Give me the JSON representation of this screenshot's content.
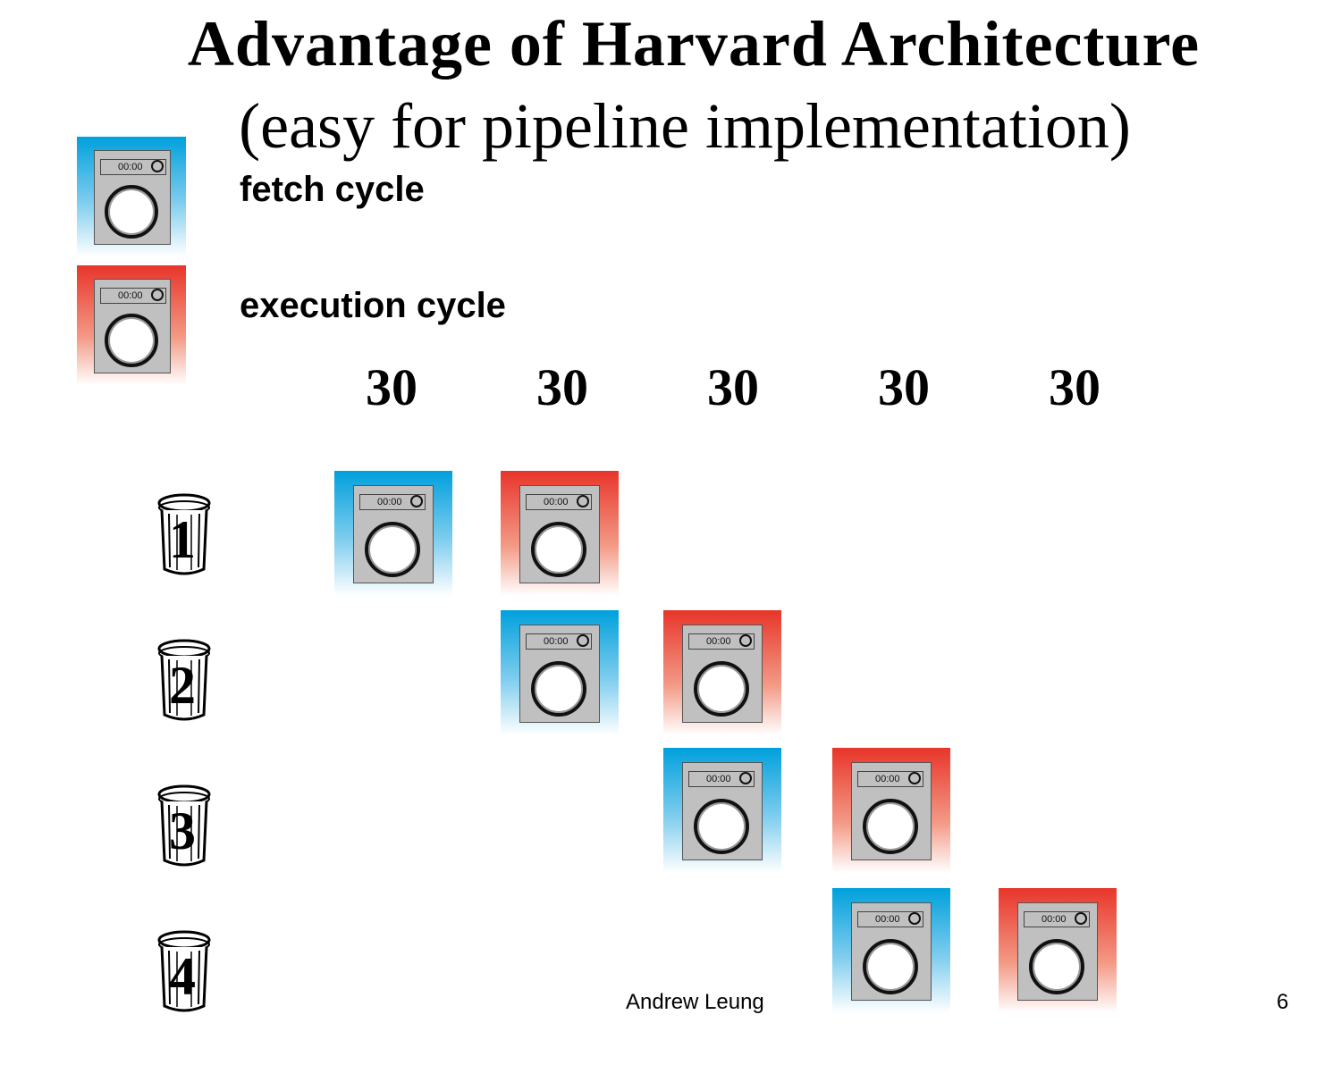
{
  "title": {
    "line1": "Advantage of Harvard Architecture",
    "line2": "(easy for pipeline implementation)"
  },
  "legend": {
    "fetch_label": "fetch cycle",
    "execution_label": "execution cycle"
  },
  "washer_display": "00:00",
  "time_slots": [
    "30",
    "30",
    "30",
    "30",
    "30"
  ],
  "instructions": [
    {
      "number": "1",
      "fetch_slot": 1,
      "execute_slot": 2
    },
    {
      "number": "2",
      "fetch_slot": 2,
      "execute_slot": 3
    },
    {
      "number": "3",
      "fetch_slot": 3,
      "execute_slot": 4
    },
    {
      "number": "4",
      "fetch_slot": 4,
      "execute_slot": 5
    }
  ],
  "colors": {
    "fetch": "#00a0dc",
    "execution": "#e8352a"
  },
  "footer": {
    "author": "Andrew Leung",
    "page": "6"
  }
}
